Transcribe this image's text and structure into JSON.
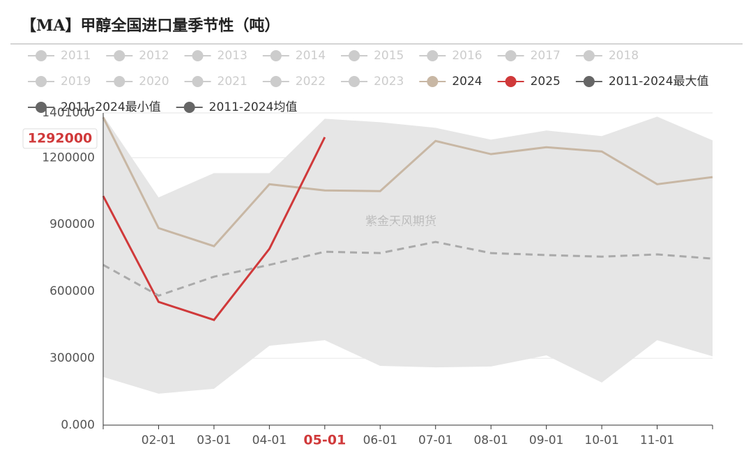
{
  "chart_data": {
    "type": "line",
    "title": "【MA】甲醇全国进口量季节性（吨）",
    "watermark": "紫金天风期货",
    "categories": [
      null,
      "02-01",
      "03-01",
      "04-01",
      "05-01",
      "06-01",
      "07-01",
      "08-01",
      "09-01",
      "10-01",
      "11-01",
      null
    ],
    "ylim": [
      0,
      1401000
    ],
    "yticks": [
      {
        "value": 0,
        "label": "0.000"
      },
      300000,
      600000,
      900000,
      1200000,
      1401000
    ],
    "grid": true,
    "band_color": "#e6e6e6",
    "hidden_series": [
      {
        "name": "2011",
        "color": "#cccccc"
      },
      {
        "name": "2012",
        "color": "#cccccc"
      },
      {
        "name": "2013",
        "color": "#cccccc"
      },
      {
        "name": "2014",
        "color": "#cccccc"
      },
      {
        "name": "2015",
        "color": "#cccccc"
      },
      {
        "name": "2016",
        "color": "#cccccc"
      },
      {
        "name": "2017",
        "color": "#cccccc"
      },
      {
        "name": "2018",
        "color": "#cccccc"
      },
      {
        "name": "2019",
        "color": "#cccccc"
      },
      {
        "name": "2020",
        "color": "#cccccc"
      },
      {
        "name": "2021",
        "color": "#cccccc"
      },
      {
        "name": "2022",
        "color": "#cccccc"
      },
      {
        "name": "2023",
        "color": "#cccccc"
      }
    ],
    "series": [
      {
        "name": "2024",
        "color": "#c8b7a4",
        "style": "line",
        "values": [
          1381000,
          884000,
          803000,
          1081000,
          1053000,
          1050000,
          1275000,
          1216000,
          1247000,
          1228000,
          1081000,
          1113000
        ]
      },
      {
        "name": "2025",
        "color": "#d0393a",
        "style": "line",
        "values": [
          1028000,
          553000,
          472000,
          791000,
          1292000,
          null,
          null,
          null,
          null,
          null,
          null,
          null
        ]
      },
      {
        "name": "2011-2024最大值",
        "color": "#666666",
        "style": "band",
        "values": [
          1390000,
          1022000,
          1131000,
          1131000,
          1375000,
          1359000,
          1334000,
          1281000,
          1322000,
          1297000,
          1384000,
          1278000
        ]
      },
      {
        "name": "2011-2024最小值",
        "color": "#666666",
        "style": "band",
        "values": [
          216000,
          141000,
          163000,
          356000,
          381000,
          266000,
          259000,
          263000,
          313000,
          191000,
          381000,
          309000
        ]
      },
      {
        "name": "2011-2024均值",
        "color": "#666666",
        "style": "dashed",
        "line_color": "#aaaaaa",
        "values": [
          719000,
          581000,
          666000,
          719000,
          778000,
          772000,
          822000,
          772000,
          763000,
          756000,
          766000,
          747000
        ]
      }
    ],
    "axis_pointer": {
      "x": "05-01",
      "y": 1292000,
      "color": "#d0393a"
    }
  }
}
